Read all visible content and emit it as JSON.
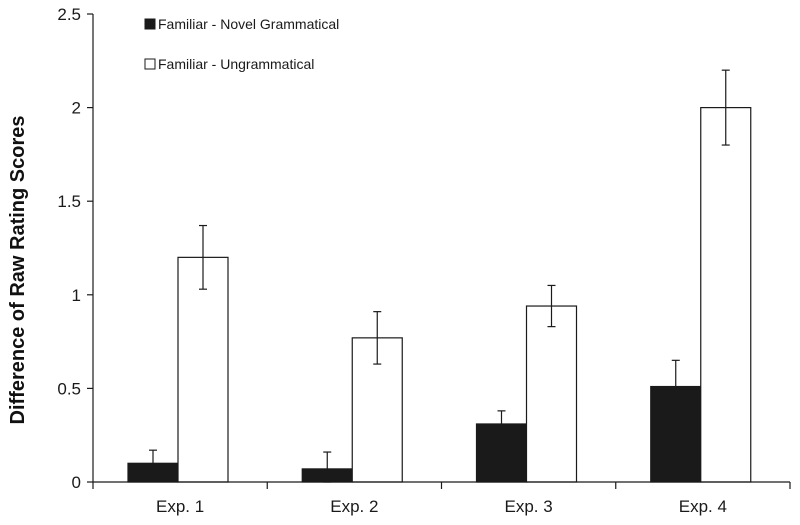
{
  "chart_data": {
    "type": "bar",
    "title": "",
    "xlabel": "",
    "ylabel": "Difference of Raw Rating Scores",
    "categories": [
      "Exp. 1",
      "Exp. 2",
      "Exp. 3",
      "Exp. 4"
    ],
    "ylim": [
      0,
      2.5
    ],
    "yticks": [
      0,
      0.5,
      1,
      1.5,
      2,
      2.5
    ],
    "ytick_labels": [
      "0",
      "0.5",
      "1",
      "1.5",
      "2",
      "2.5"
    ],
    "grid": false,
    "legend_position": "top-left",
    "series": [
      {
        "name": "Familiar - Novel Grammatical",
        "fill": "#1a1a1a",
        "values": [
          0.1,
          0.07,
          0.31,
          0.51
        ],
        "errors": [
          0.07,
          0.09,
          0.07,
          0.14
        ]
      },
      {
        "name": "Familiar - Ungrammatical",
        "fill": "#ffffff",
        "values": [
          1.2,
          0.77,
          0.94,
          2.0
        ],
        "errors": [
          0.17,
          0.14,
          0.11,
          0.2
        ]
      }
    ]
  }
}
